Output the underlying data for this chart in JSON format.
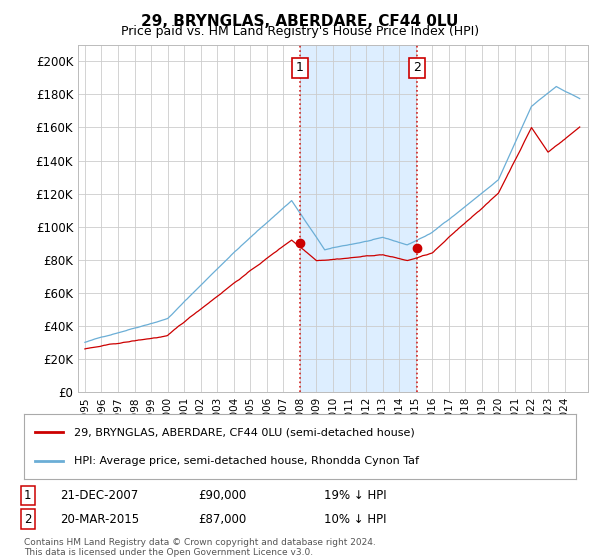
{
  "title": "29, BRYNGLAS, ABERDARE, CF44 0LU",
  "subtitle": "Price paid vs. HM Land Registry's House Price Index (HPI)",
  "ylim": [
    0,
    210000
  ],
  "yticks": [
    0,
    20000,
    40000,
    60000,
    80000,
    100000,
    120000,
    140000,
    160000,
    180000,
    200000
  ],
  "ytick_labels": [
    "£0",
    "£20K",
    "£40K",
    "£60K",
    "£80K",
    "£100K",
    "£120K",
    "£140K",
    "£160K",
    "£180K",
    "£200K"
  ],
  "hpi_color": "#6baed6",
  "price_color": "#cc0000",
  "vline_color": "#cc0000",
  "shade_color": "#ddeeff",
  "marker1_date_idx": 156,
  "marker2_date_idx": 241,
  "marker1_price": 90000,
  "marker2_price": 87000,
  "marker1_date": "21-DEC-2007",
  "marker2_date": "20-MAR-2015",
  "marker1_pct": "19% ↓ HPI",
  "marker2_pct": "10% ↓ HPI",
  "legend_property": "29, BRYNGLAS, ABERDARE, CF44 0LU (semi-detached house)",
  "legend_hpi": "HPI: Average price, semi-detached house, Rhondda Cynon Taf",
  "footnote": "Contains HM Land Registry data © Crown copyright and database right 2024.\nThis data is licensed under the Open Government Licence v3.0.",
  "background_color": "#ffffff",
  "grid_color": "#cccccc",
  "n_months": 360,
  "start_year": 1995,
  "end_year": 2025
}
